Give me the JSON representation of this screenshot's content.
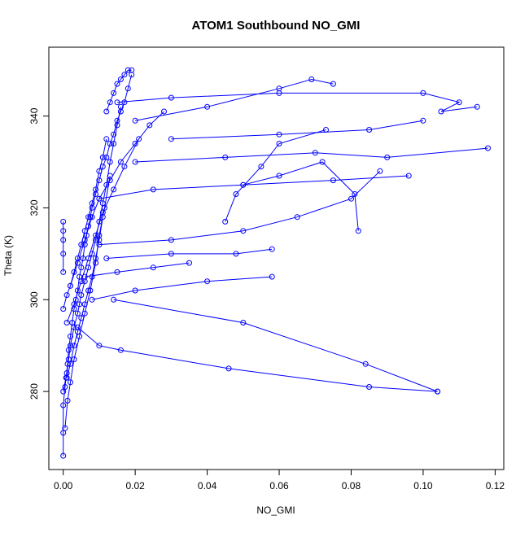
{
  "chart_data": {
    "type": "scatter",
    "title": "ATOM1 Southbound NO_GMI",
    "xlabel": "NO_GMI",
    "ylabel": "Theta (K)",
    "xlim": [
      -0.004,
      0.1224
    ],
    "ylim": [
      263,
      355
    ],
    "x_ticks": [
      0.0,
      0.02,
      0.04,
      0.06,
      0.08,
      0.1,
      0.12
    ],
    "x_tick_labels": [
      "0.00",
      "0.02",
      "0.04",
      "0.06",
      "0.08",
      "0.10",
      "0.12"
    ],
    "y_ticks": [
      280,
      300,
      320,
      340
    ],
    "y_tick_labels": [
      "280",
      "300",
      "320",
      "340"
    ],
    "grid": false,
    "legend": "none",
    "marker": "open-circle",
    "connect_points": true,
    "color": "#0000ff",
    "series": [
      {
        "x": [
          0.0,
          0.0,
          0.0,
          0.0005,
          0.0008,
          0.0012,
          0.0015,
          0.002,
          0.0025,
          0.003,
          0.0035,
          0.004,
          0.0045,
          0.005,
          0.0055,
          0.006,
          0.0065,
          0.007,
          0.0075,
          0.008,
          0.009,
          0.01,
          0.011,
          0.012,
          0.013,
          0.014,
          0.015,
          0.016,
          0.017,
          0.018,
          0.019
        ],
        "y": [
          266,
          271,
          277,
          281,
          283,
          286,
          289,
          292,
          295,
          298,
          300,
          302,
          305,
          307,
          309,
          312,
          314,
          316,
          318,
          320,
          323,
          326,
          329,
          331,
          334,
          336,
          339,
          341,
          343,
          346,
          349
        ]
      },
      {
        "x": [
          0.0,
          0.001,
          0.0015,
          0.002,
          0.003,
          0.004,
          0.0045,
          0.005,
          0.006,
          0.007,
          0.008,
          0.009,
          0.01,
          0.011,
          0.012,
          0.013,
          0.014,
          0.015,
          0.016
        ],
        "y": [
          280,
          284,
          287,
          290,
          294,
          297,
          299,
          301,
          304,
          307,
          310,
          313,
          317,
          321,
          325,
          330,
          334,
          338,
          342
        ]
      },
      {
        "x": [
          0.0005,
          0.0012,
          0.002,
          0.003,
          0.0045,
          0.006,
          0.0075,
          0.009,
          0.01,
          0.0115,
          0.013
        ],
        "y": [
          272,
          278,
          282,
          287,
          292,
          297,
          302,
          308,
          314,
          320,
          327
        ]
      },
      {
        "x": [
          0.0,
          0.001,
          0.002,
          0.003,
          0.004,
          0.005,
          0.006,
          0.007,
          0.008,
          0.009,
          0.01,
          0.011,
          0.012
        ],
        "y": [
          298,
          301,
          303,
          306,
          309,
          312,
          315,
          318,
          321,
          324,
          328,
          331,
          335
        ]
      },
      {
        "x": [
          0.001,
          0.002,
          0.003,
          0.004,
          0.005,
          0.006,
          0.007,
          0.008,
          0.009,
          0.01,
          0.011
        ],
        "y": [
          283,
          286,
          290,
          293,
          296,
          299,
          302,
          305,
          309,
          313,
          318
        ]
      },
      {
        "x": [
          0.002,
          0.004,
          0.006,
          0.008,
          0.01,
          0.013,
          0.016,
          0.02,
          0.024,
          0.028
        ],
        "y": [
          303,
          308,
          313,
          318,
          322,
          326,
          330,
          334,
          338,
          341
        ]
      },
      {
        "x": [
          0.001,
          0.003,
          0.005,
          0.007,
          0.009,
          0.011,
          0.014,
          0.017,
          0.021
        ],
        "y": [
          295,
          299,
          304,
          309,
          314,
          319,
          324,
          329,
          335
        ]
      },
      {
        "x": [
          0.012,
          0.013,
          0.014,
          0.015,
          0.016,
          0.017,
          0.018,
          0.019
        ],
        "y": [
          341,
          343,
          345,
          347,
          348,
          349,
          350,
          350
        ]
      },
      {
        "x": [
          0.0,
          0.0,
          0.0,
          0.0,
          0.0
        ],
        "y": [
          306,
          310,
          313,
          315,
          317
        ]
      },
      {
        "x": [
          0.015,
          0.03,
          0.06,
          0.1,
          0.11,
          0.105,
          0.115
        ],
        "y": [
          343,
          344,
          345,
          345,
          343,
          341,
          342
        ]
      },
      {
        "x": [
          0.02,
          0.045,
          0.07,
          0.09,
          0.118
        ],
        "y": [
          330,
          331,
          332,
          331,
          333
        ]
      },
      {
        "x": [
          0.01,
          0.025,
          0.05,
          0.075,
          0.096
        ],
        "y": [
          322,
          324,
          325,
          326,
          327
        ]
      },
      {
        "x": [
          0.01,
          0.03,
          0.05,
          0.065,
          0.08,
          0.088
        ],
        "y": [
          312,
          313,
          315,
          318,
          322,
          328
        ]
      },
      {
        "x": [
          0.008,
          0.02,
          0.04,
          0.058
        ],
        "y": [
          300,
          302,
          304,
          305
        ]
      },
      {
        "x": [
          0.012,
          0.03,
          0.048,
          0.058
        ],
        "y": [
          309,
          310,
          310,
          311
        ]
      },
      {
        "x": [
          0.004,
          0.01,
          0.016,
          0.046,
          0.085,
          0.104
        ],
        "y": [
          294,
          290,
          289,
          285,
          281,
          280
        ]
      },
      {
        "x": [
          0.014,
          0.05,
          0.084,
          0.104
        ],
        "y": [
          300,
          295,
          286,
          280
        ]
      },
      {
        "x": [
          0.02,
          0.04,
          0.06,
          0.069,
          0.075
        ],
        "y": [
          339,
          342,
          346,
          348,
          347
        ]
      },
      {
        "x": [
          0.03,
          0.06,
          0.085,
          0.1
        ],
        "y": [
          335,
          336,
          337,
          339
        ]
      },
      {
        "x": [
          0.05,
          0.06,
          0.072,
          0.081,
          0.082
        ],
        "y": [
          325,
          327,
          330,
          323,
          315
        ]
      },
      {
        "x": [
          0.045,
          0.048,
          0.055,
          0.06,
          0.073
        ],
        "y": [
          317,
          323,
          329,
          334,
          337
        ]
      },
      {
        "x": [
          0.006,
          0.015,
          0.025,
          0.035
        ],
        "y": [
          305,
          306,
          307,
          308
        ]
      }
    ]
  }
}
